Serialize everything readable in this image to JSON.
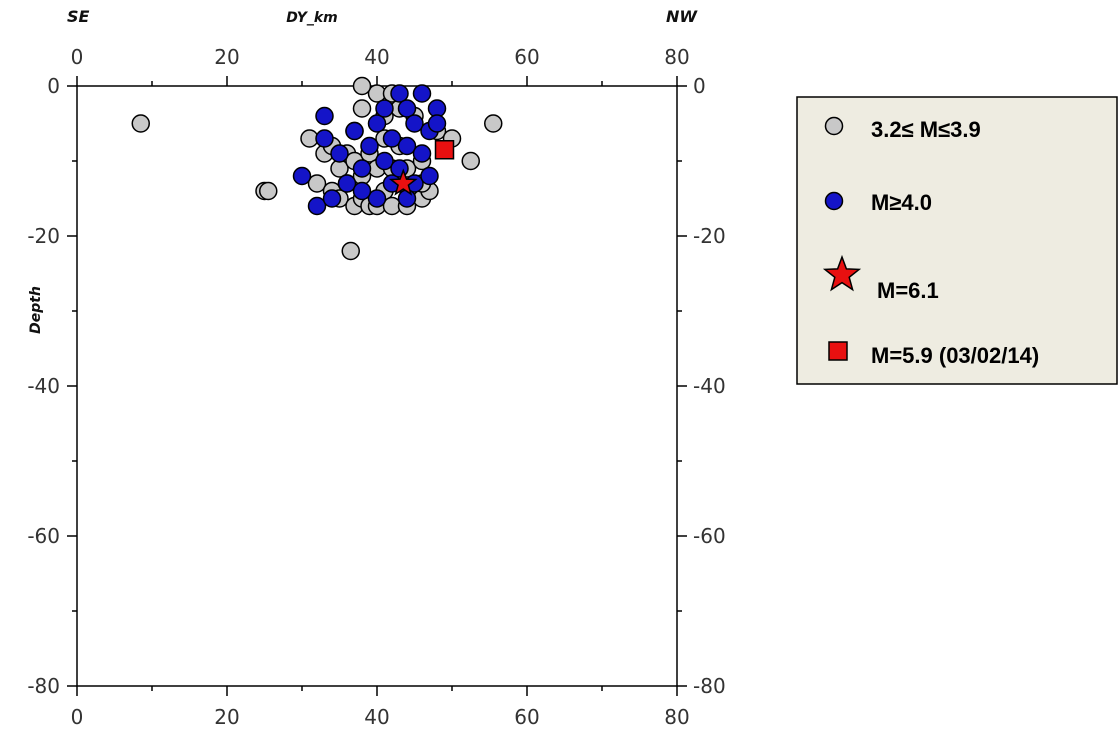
{
  "chart_data": {
    "type": "scatter",
    "title": "",
    "xlabel": "DY_km",
    "ylabel": "Depth",
    "corner_left": "SE",
    "corner_right": "NW",
    "xlim": [
      0,
      80
    ],
    "ylim": [
      -80,
      0
    ],
    "x_ticks": [
      "0",
      "20",
      "40",
      "60",
      "80"
    ],
    "y_ticks": [
      "0",
      "-20",
      "-40",
      "-60",
      "-80"
    ],
    "grid": false,
    "legend_position": "right",
    "series": [
      {
        "name": "3.2≤ M≤3.9",
        "marker": "circle",
        "color": "#c8c8c8",
        "x": [
          8.5,
          25,
          25.5,
          31,
          32,
          33,
          34,
          34,
          35,
          35,
          36,
          36,
          37,
          37,
          37,
          38,
          38,
          38,
          39,
          39,
          40,
          40,
          40,
          41,
          41,
          41,
          42,
          42,
          43,
          43,
          43,
          44,
          44,
          45,
          45,
          46,
          46,
          47,
          48,
          36.5,
          50,
          52.5,
          55.5,
          38,
          42,
          46
        ],
        "y": [
          -5,
          -14,
          -14,
          -7,
          -13,
          -9,
          -14,
          -8,
          -11,
          -15,
          -9,
          -13,
          -10,
          -16,
          -6,
          -12,
          -3,
          -15,
          -16,
          -9,
          -11,
          -16,
          -1,
          -14,
          -7,
          -4,
          -16,
          -11,
          -13,
          -3,
          -8,
          -16,
          -11,
          -14,
          -4,
          -10,
          -15,
          -14,
          -6,
          -22,
          -7,
          -10,
          -5,
          0,
          -1,
          -13
        ]
      },
      {
        "name": "M≥4.0",
        "marker": "circle",
        "color": "#1414c8",
        "x": [
          30,
          32,
          33,
          33,
          34,
          35,
          36,
          37,
          38,
          39,
          40,
          41,
          41,
          42,
          42,
          43,
          43,
          44,
          44,
          45,
          45,
          46,
          46,
          47,
          47,
          48,
          48,
          40,
          44,
          38
        ],
        "y": [
          -12,
          -16,
          -4,
          -7,
          -15,
          -9,
          -13,
          -6,
          -11,
          -8,
          -5,
          -10,
          -3,
          -13,
          -7,
          -1,
          -11,
          -8,
          -3,
          -13,
          -5,
          -9,
          -1,
          -12,
          -6,
          -3,
          -5,
          -15,
          -15,
          -14
        ]
      },
      {
        "name": "M=6.1",
        "marker": "star",
        "color": "#e81010",
        "x": [
          43.5
        ],
        "y": [
          -13
        ]
      },
      {
        "name": "M=5.9 (03/02/14)",
        "marker": "square",
        "color": "#e81010",
        "x": [
          49
        ],
        "y": [
          -8.5
        ]
      }
    ]
  },
  "legend": {
    "items": [
      {
        "label": "3.2≤ M≤3.9",
        "marker": "circle",
        "color": "#c8c8c8"
      },
      {
        "label": "M≥4.0",
        "marker": "circle",
        "color": "#1414c8"
      },
      {
        "label": "M=6.1",
        "marker": "star",
        "color": "#e81010"
      },
      {
        "label": "M=5.9 (03/02/14)",
        "marker": "square",
        "color": "#e81010"
      }
    ],
    "background": "#eeece1"
  }
}
